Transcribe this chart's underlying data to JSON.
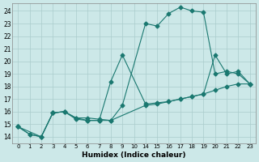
{
  "xlabel": "Humidex (Indice chaleur)",
  "bg_color": "#cce8e8",
  "grid_color": "#aacccc",
  "line_color": "#1a7870",
  "ylim": [
    13.5,
    24.6
  ],
  "yticks": [
    14,
    15,
    16,
    17,
    18,
    19,
    20,
    21,
    22,
    23,
    24
  ],
  "xtick_labels": [
    "0",
    "1",
    "2",
    "3",
    "4",
    "5",
    "6",
    "7",
    "8",
    "9",
    "10",
    "14",
    "15",
    "16",
    "17",
    "18",
    "19",
    "20",
    "21",
    "22",
    "23"
  ],
  "line1_pos": [
    0,
    1,
    2,
    3,
    4,
    5,
    6,
    7,
    8,
    9,
    11,
    12,
    13,
    14,
    15,
    16,
    17,
    18,
    19,
    20
  ],
  "line1_y": [
    14.8,
    14.2,
    14.0,
    15.9,
    16.0,
    15.4,
    15.3,
    15.3,
    15.3,
    16.5,
    23.0,
    22.8,
    23.8,
    24.3,
    24.0,
    23.9,
    19.0,
    19.2,
    19.0,
    18.2
  ],
  "line2_pos": [
    0,
    1,
    2,
    3,
    4,
    5,
    6,
    7,
    8,
    9,
    11,
    12,
    13,
    14,
    15,
    16,
    17,
    18,
    19,
    20
  ],
  "line2_y": [
    14.8,
    14.2,
    14.0,
    15.9,
    16.0,
    15.5,
    15.3,
    15.3,
    18.4,
    20.5,
    16.6,
    16.7,
    16.8,
    17.0,
    17.2,
    17.4,
    20.5,
    19.0,
    19.2,
    18.2
  ],
  "line3_pos": [
    0,
    2,
    3,
    4,
    5,
    6,
    7,
    8,
    11,
    12,
    13,
    14,
    15,
    16,
    17,
    18,
    19,
    20
  ],
  "line3_y": [
    14.8,
    14.0,
    15.9,
    16.0,
    15.5,
    15.5,
    15.4,
    15.3,
    16.5,
    16.6,
    16.8,
    17.0,
    17.2,
    17.4,
    17.7,
    18.0,
    18.2,
    18.2
  ]
}
